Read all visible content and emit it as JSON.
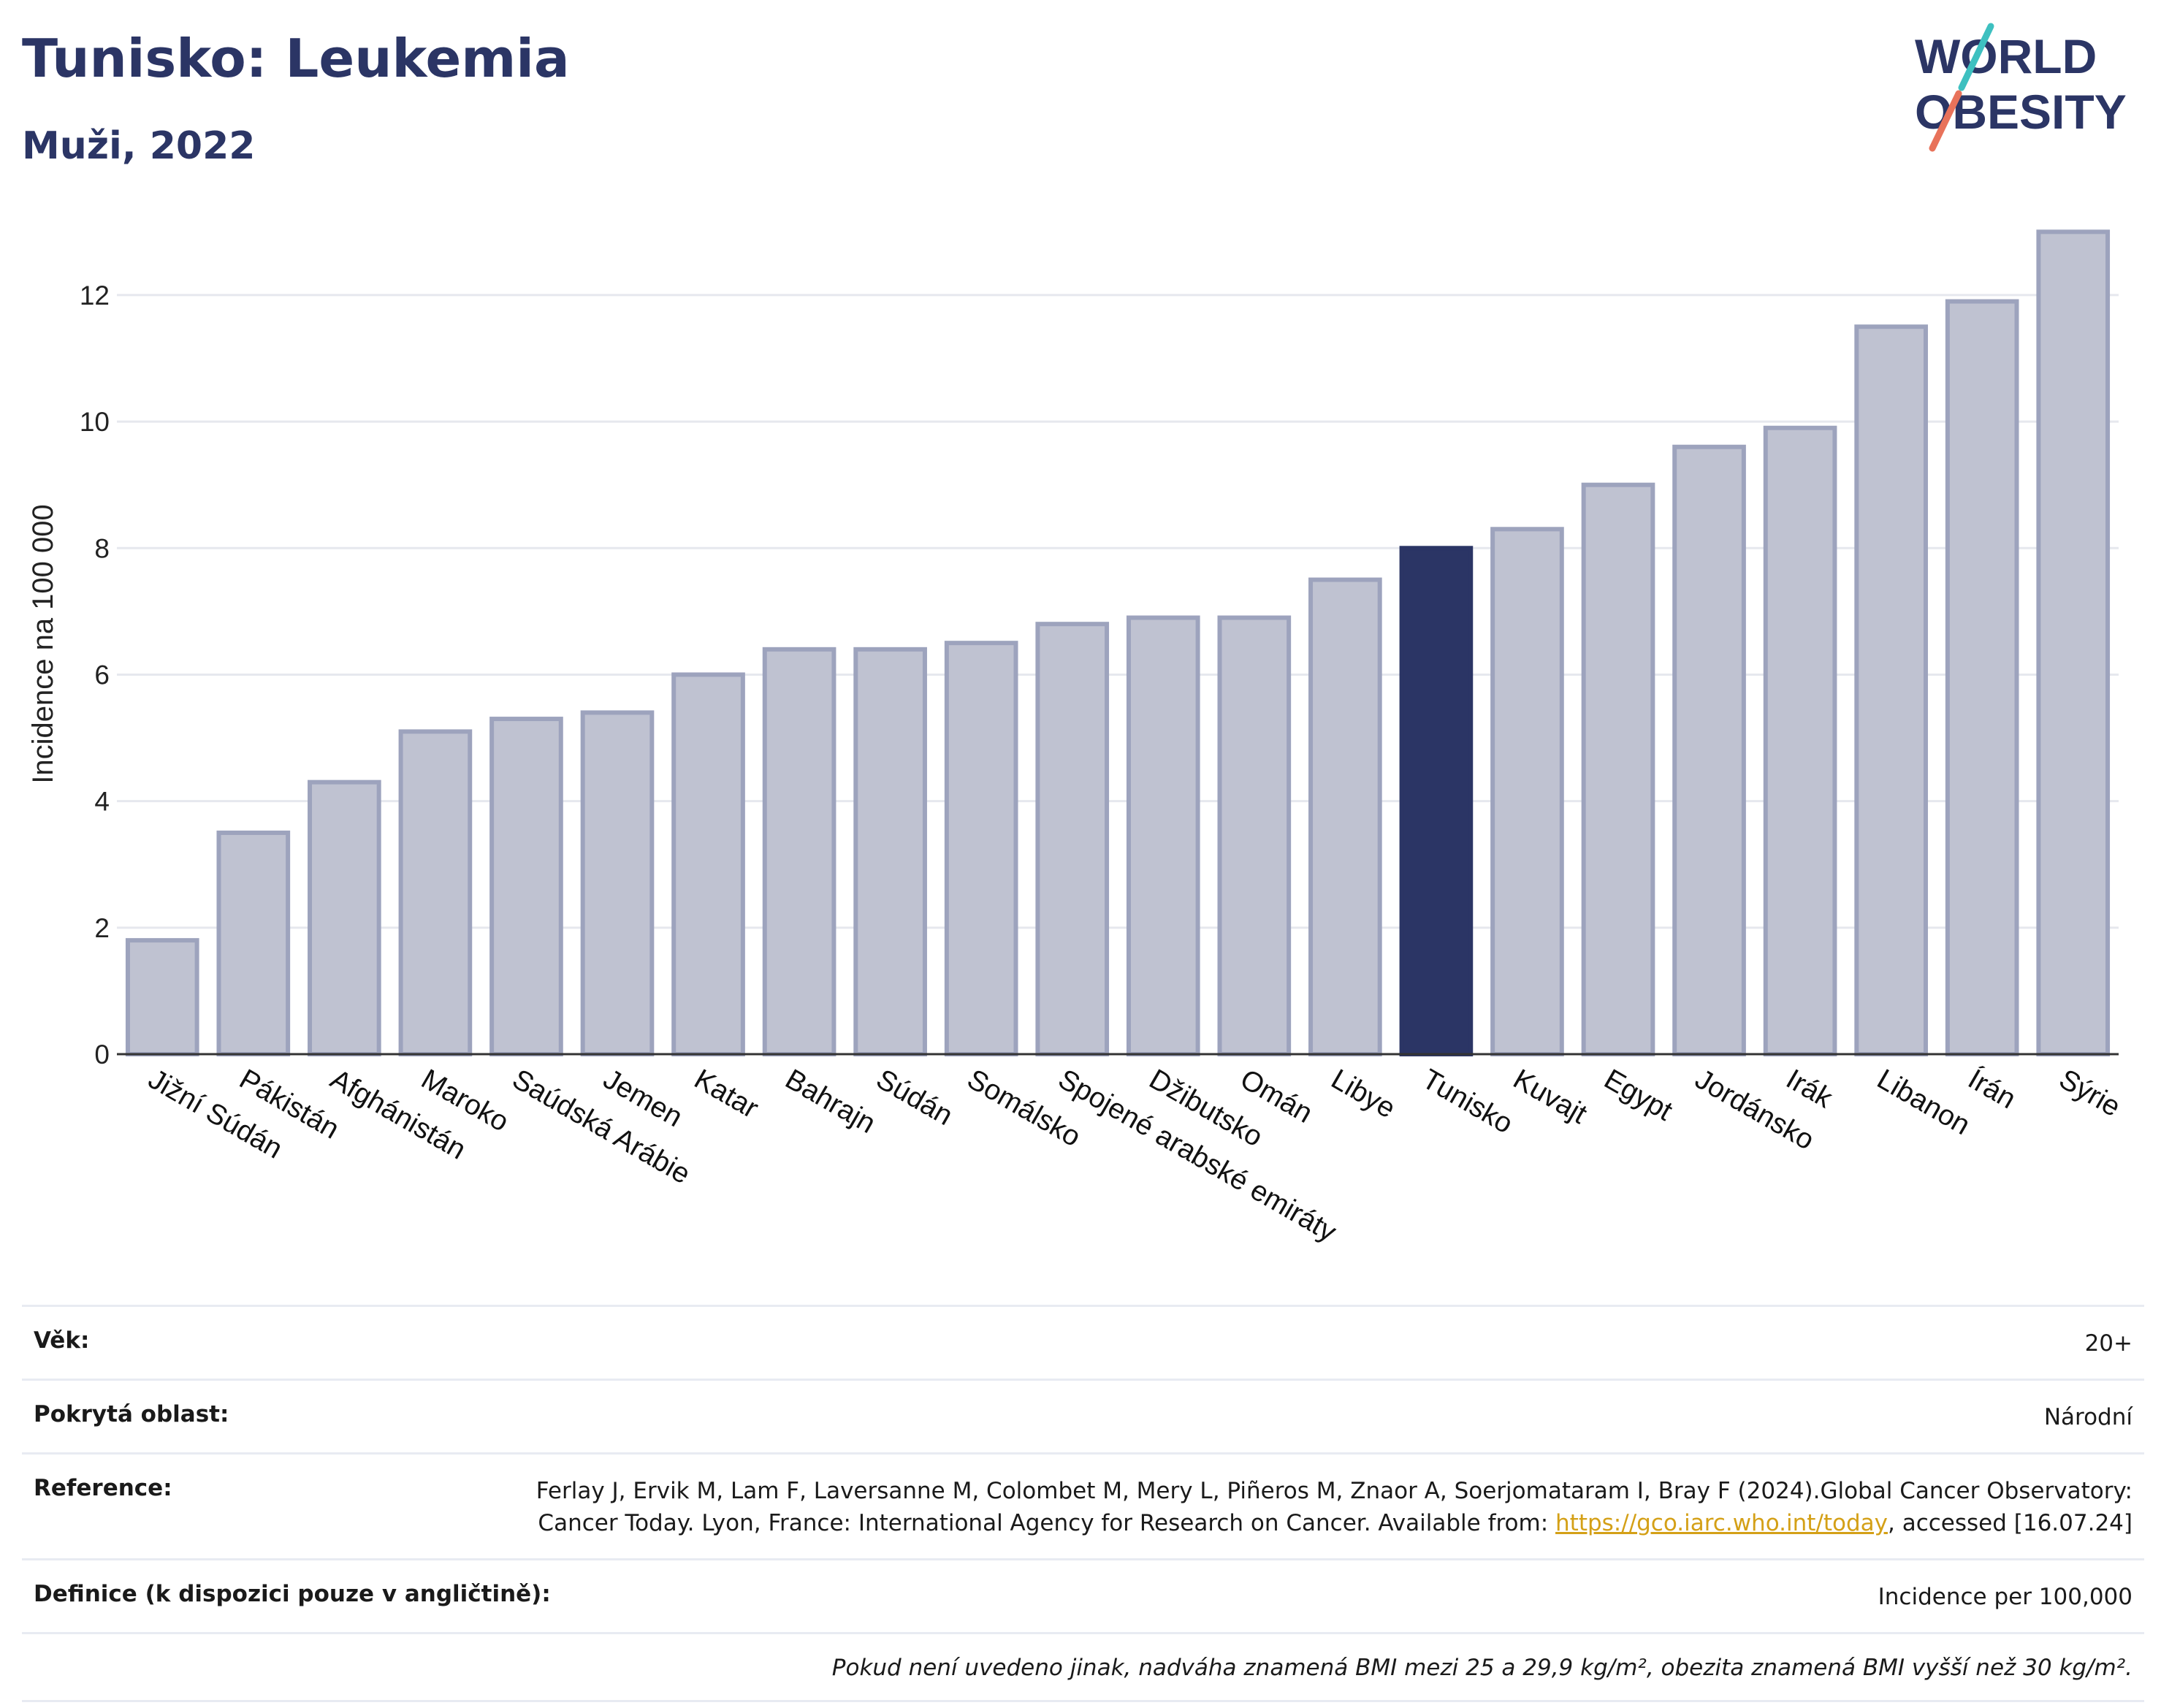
{
  "header": {
    "title": "Tunisko: Leukemia",
    "subtitle": "Muži, 2022"
  },
  "logo": {
    "line1": "WORLD",
    "line2": "OBESITY"
  },
  "colors": {
    "bar_default": "#bfc2d1",
    "bar_border": "#9da3bd",
    "bar_highlight": "#2b3565",
    "title": "#2b3565"
  },
  "chart_data": {
    "type": "bar",
    "ylabel": "Incidence na 100 000",
    "ylim": [
      0,
      13.2
    ],
    "yticks": [
      0,
      2,
      4,
      6,
      8,
      10,
      12
    ],
    "grid": true,
    "highlight": "Tunisko",
    "categories": [
      "Jižní Súdán",
      "Pákistán",
      "Afghánistán",
      "Maroko",
      "Saúdská Arábie",
      "Jemen",
      "Katar",
      "Bahrajn",
      "Súdán",
      "Somálsko",
      "Spojené arabské emiráty",
      "Džibutsko",
      "Omán",
      "Libye",
      "Tunisko",
      "Kuvajt",
      "Egypt",
      "Jordánsko",
      "Irák",
      "Libanon",
      "Írán",
      "Sýrie"
    ],
    "values": [
      1.8,
      3.5,
      4.3,
      5.1,
      5.3,
      5.4,
      6.0,
      6.4,
      6.4,
      6.5,
      6.8,
      6.9,
      6.9,
      7.5,
      8.0,
      8.3,
      9.0,
      9.6,
      9.9,
      11.5,
      11.9,
      13.0
    ]
  },
  "info": {
    "age_label": "Věk:",
    "age_value": "20+",
    "area_label": "Pokrytá oblast:",
    "area_value": "Národní",
    "reference_label": "Reference:",
    "reference_text": "Ferlay J, Ervik M, Lam F, Laversanne M, Colombet M, Mery L, Piñeros M, Znaor A, Soerjomataram I, Bray F (2024).Global Cancer Observatory: Cancer Today. Lyon, France: International Agency for Research on Cancer. Available from: ",
    "reference_link": "https://gco.iarc.who.int/today",
    "reference_tail": ", accessed [16.07.24]",
    "definition_label": "Definice (k dispozici pouze v angličtině):",
    "definition_value": "Incidence per 100,000",
    "note": "Pokud není uvedeno jinak, nadváha znamená BMI mezi 25 a 29,9 kg/m², obezita znamená BMI vyšší než 30 kg/m²."
  }
}
